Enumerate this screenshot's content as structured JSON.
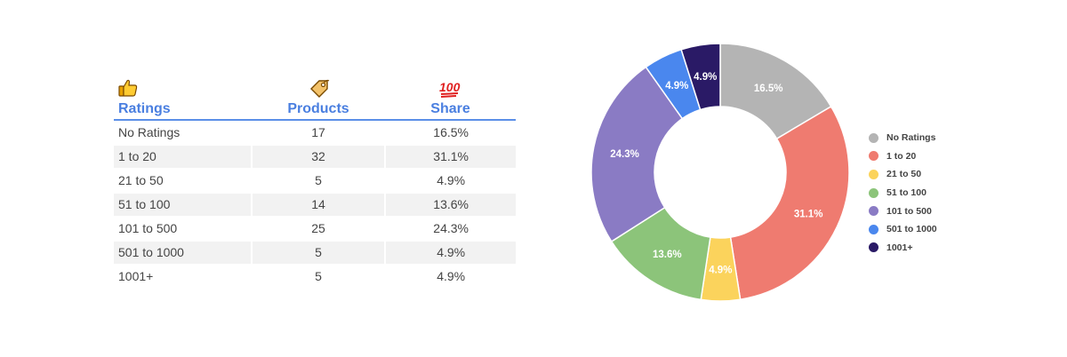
{
  "table": {
    "icons": [
      "thumbs-up-icon",
      "price-tag-icon",
      "hundred-points-icon"
    ],
    "headers": [
      "Ratings",
      "Products",
      "Share"
    ],
    "rows": [
      [
        "No Ratings",
        "17",
        "16.5%"
      ],
      [
        "1 to 20",
        "32",
        "31.1%"
      ],
      [
        "21 to 50",
        "5",
        "4.9%"
      ],
      [
        "51 to 100",
        "14",
        "13.6%"
      ],
      [
        "101 to 500",
        "25",
        "24.3%"
      ],
      [
        "501 to 1000",
        "5",
        "4.9%"
      ],
      [
        "1001+",
        "5",
        "4.9%"
      ]
    ]
  },
  "chart_data": {
    "type": "pie",
    "donut": true,
    "categories": [
      "No Ratings",
      "1 to 20",
      "21 to 50",
      "51 to 100",
      "101 to 500",
      "501 to 1000",
      "1001+"
    ],
    "values": [
      16.5,
      31.1,
      4.9,
      13.6,
      24.3,
      4.9,
      4.9
    ],
    "data_labels": [
      "16.5%",
      "31.1%",
      "4.9%",
      "13.6%",
      "24.3%",
      "4.9%",
      "4.9%"
    ],
    "colors": [
      "#b4b4b4",
      "#ef7b70",
      "#fbd35c",
      "#8cc47a",
      "#8a7bc4",
      "#4a87ee",
      "#2a1a66"
    ],
    "legend": "right",
    "start_angle_deg": 0,
    "direction": "clockwise"
  }
}
